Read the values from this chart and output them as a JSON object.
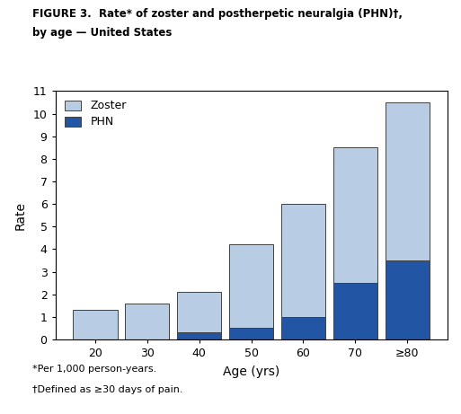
{
  "title_line1": "FIGURE 3.  Rate* of zoster and postherpetic neuralgia (PHN)†,",
  "title_line2": "by age — United States",
  "categories": [
    "20",
    "30",
    "40",
    "50",
    "60",
    "70",
    "≥80"
  ],
  "zoster_total": [
    1.3,
    1.6,
    2.1,
    4.2,
    6.0,
    8.5,
    10.5
  ],
  "phn_values": [
    0.0,
    0.0,
    0.3,
    0.5,
    1.0,
    2.5,
    3.5
  ],
  "zoster_color": "#b8cce4",
  "phn_color": "#2255a4",
  "ylabel": "Rate",
  "xlabel": "Age (yrs)",
  "ylim": [
    0,
    11
  ],
  "yticks": [
    0,
    1,
    2,
    3,
    4,
    5,
    6,
    7,
    8,
    9,
    10,
    11
  ],
  "legend_zoster": "Zoster",
  "legend_phn": "PHN",
  "footnote1": "*Per 1,000 person-years.",
  "footnote2": "†Defined as ≥30 days of pain.",
  "background_color": "#ffffff",
  "bar_edge_color": "#404040",
  "bar_width": 0.85
}
